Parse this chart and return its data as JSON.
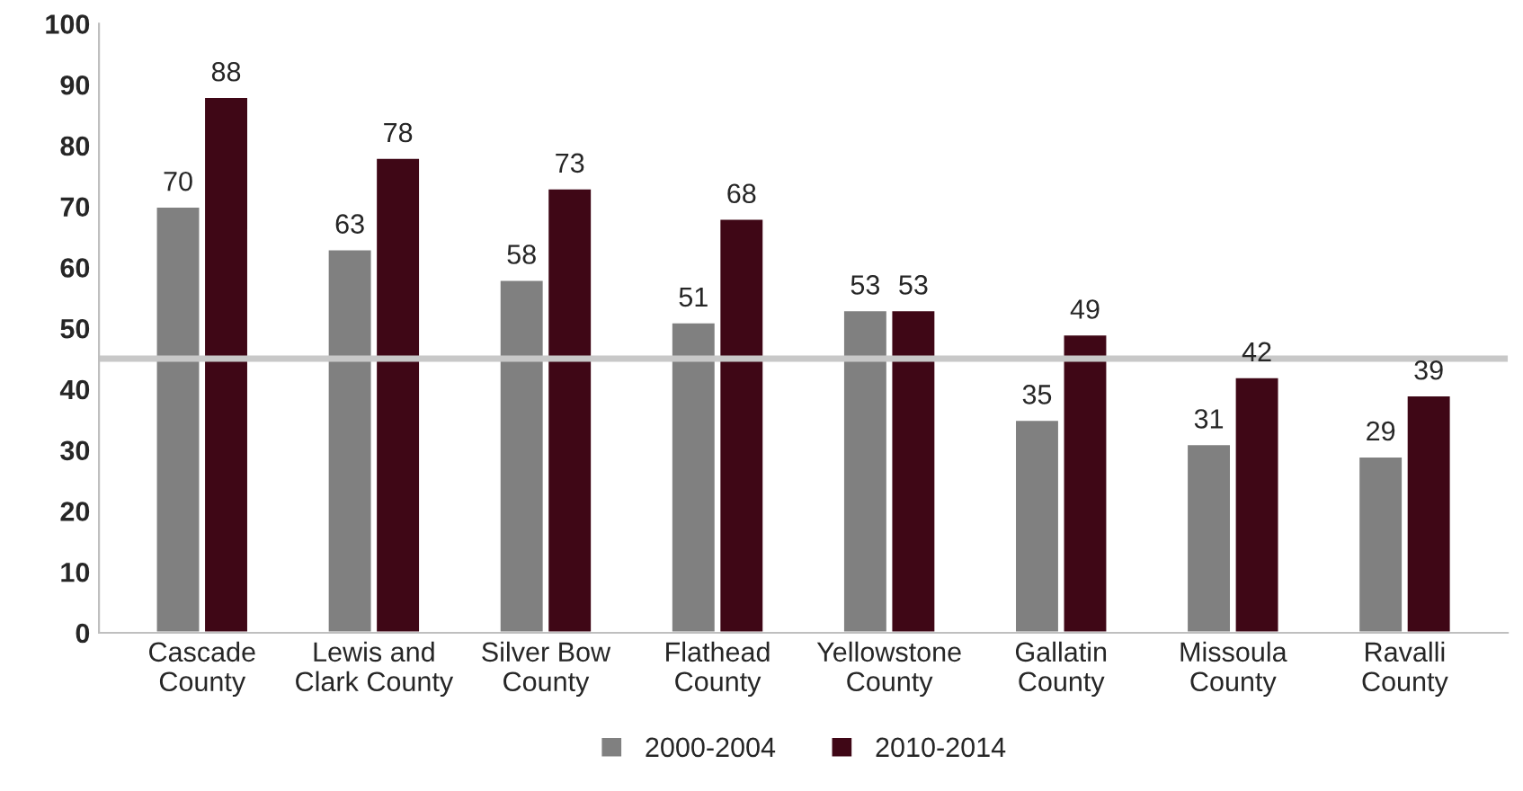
{
  "chart_data": {
    "type": "bar",
    "categories": [
      "Cascade\nCounty",
      "Lewis and\nClark County",
      "Silver Bow\nCounty",
      "Flathead\nCounty",
      "Yellowstone\nCounty",
      "Gallatin\nCounty",
      "Missoula\nCounty",
      "Ravalli\nCounty"
    ],
    "series": [
      {
        "name": "2000-2004",
        "color": "#808080",
        "values": [
          70,
          63,
          58,
          51,
          53,
          35,
          31,
          29
        ]
      },
      {
        "name": "2010-2014",
        "color": "#3f0716",
        "values": [
          88,
          78,
          73,
          68,
          53,
          49,
          42,
          39
        ]
      }
    ],
    "ylim": [
      0,
      100
    ],
    "yticks": [
      0,
      10,
      20,
      30,
      40,
      50,
      60,
      70,
      80,
      90,
      100
    ],
    "data_labels": true,
    "grid": false,
    "legend": "bottom",
    "ref_lines": [
      {
        "axis": "y",
        "value": 45,
        "color": "#c8c8c8"
      }
    ]
  }
}
